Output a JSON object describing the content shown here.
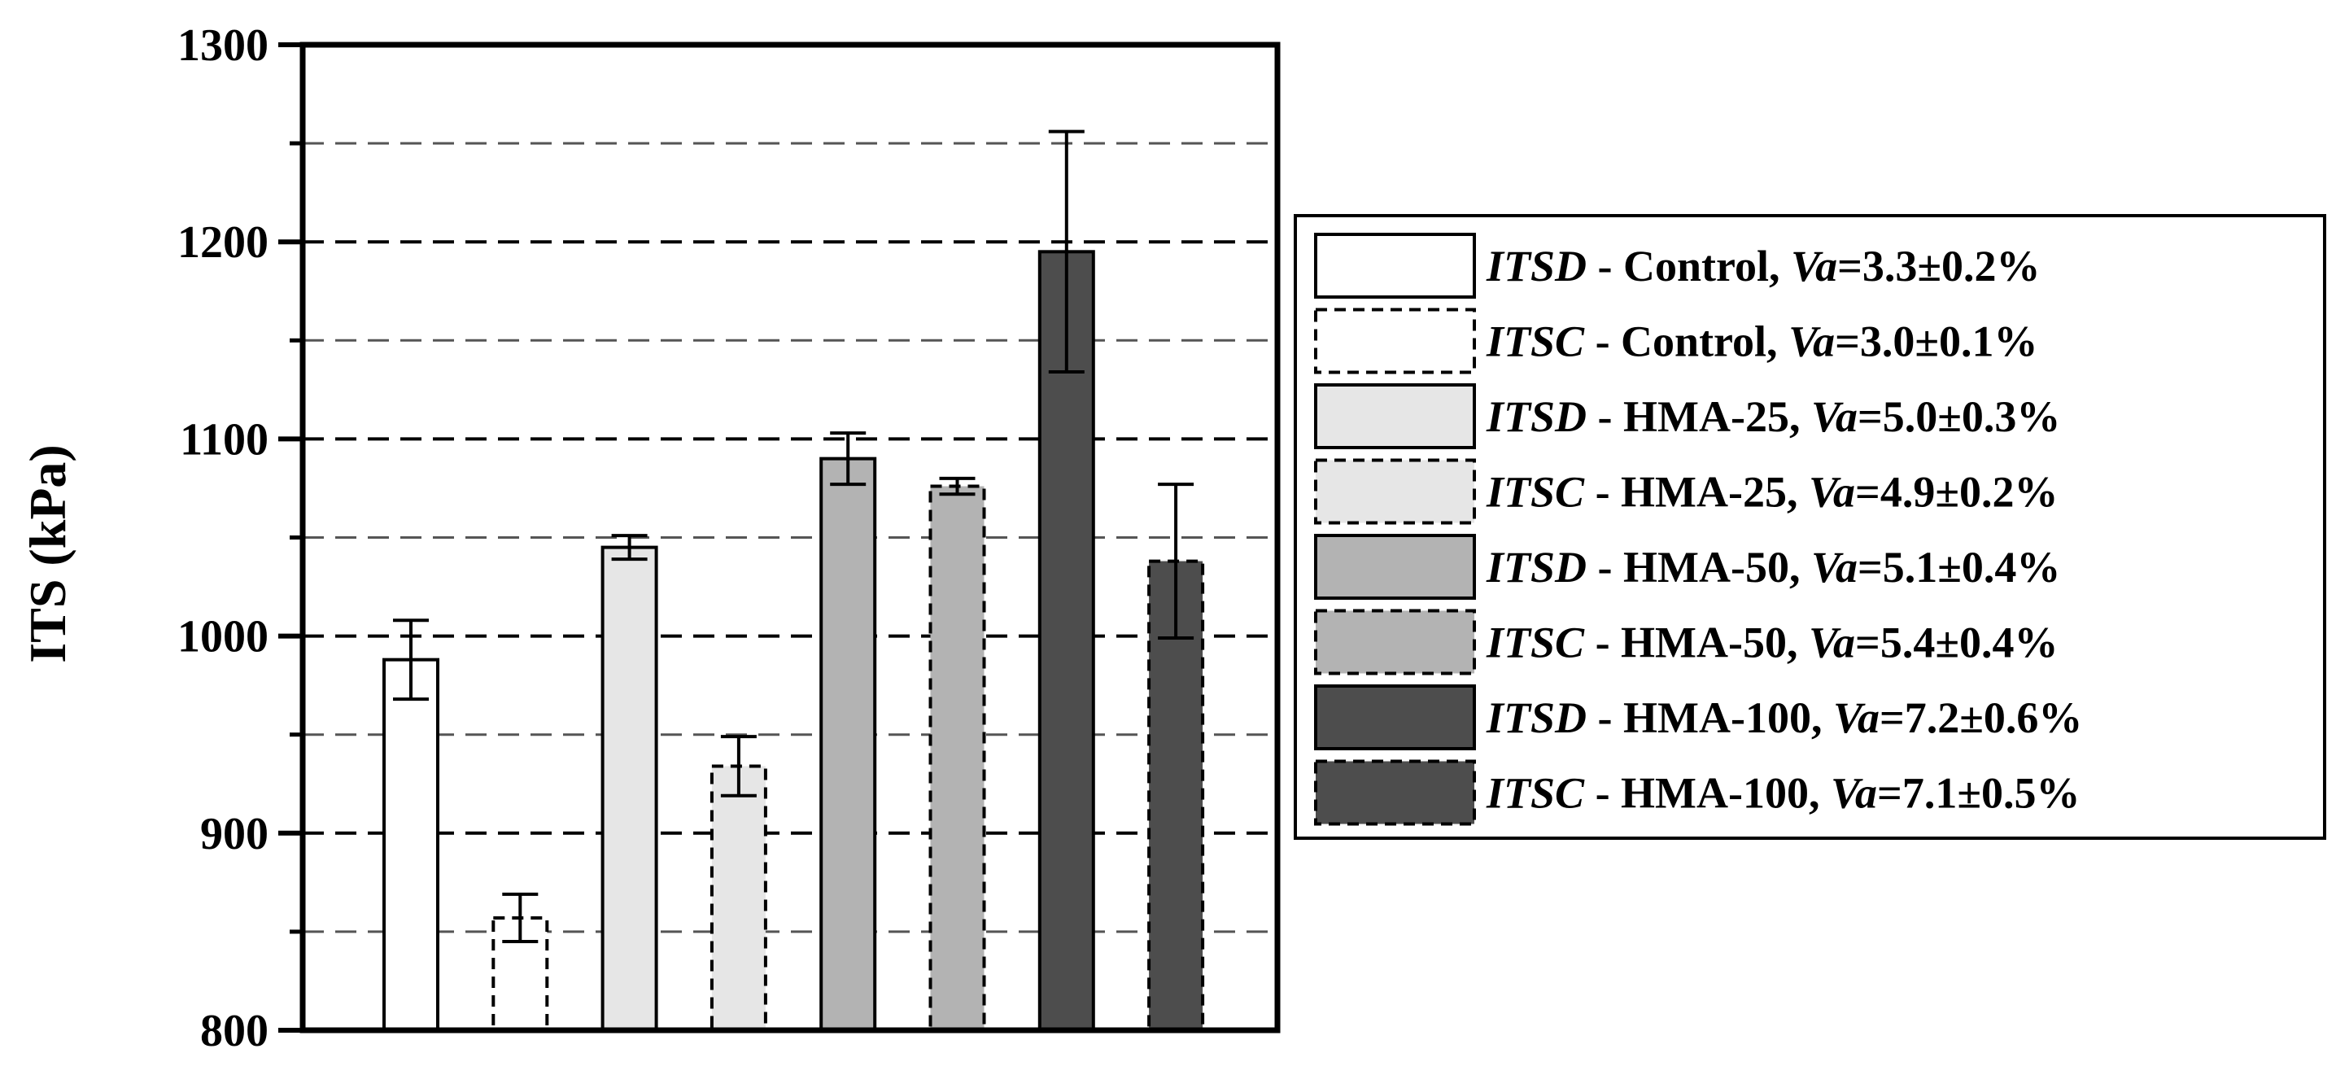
{
  "chart_data": {
    "type": "bar",
    "title": "",
    "xlabel": "",
    "ylabel": "ITS (kPa)",
    "ylim": [
      800,
      1300
    ],
    "yticks": [
      "800",
      "900",
      "1000",
      "1100",
      "1200",
      "1300"
    ],
    "grid": "horizontal dashed",
    "legend_position": "right",
    "colors": {
      "Control": "#ffffff",
      "HMA-25": "#e6e6e6",
      "HMA-50": "#b3b3b3",
      "HMA-100": "#4d4d4d"
    },
    "series": [
      {
        "legend": {
          "prefix": "ITSD",
          "mix": " - Control, ",
          "va": "Va",
          "value": "=3.3±0.2%"
        },
        "value": 988,
        "error": 20,
        "fill": "#ffffff",
        "dashed": false
      },
      {
        "legend": {
          "prefix": "ITSC",
          "mix": " - Control, ",
          "va": "Va",
          "value": "=3.0±0.1%"
        },
        "value": 857,
        "error": 12,
        "fill": "#ffffff",
        "dashed": true
      },
      {
        "legend": {
          "prefix": "ITSD",
          "mix": " - HMA-25, ",
          "va": "Va",
          "value": "=5.0±0.3%"
        },
        "value": 1045,
        "error": 6,
        "fill": "#e6e6e6",
        "dashed": false
      },
      {
        "legend": {
          "prefix": "ITSC",
          "mix": " - HMA-25, ",
          "va": "Va",
          "value": "=4.9±0.2%"
        },
        "value": 934,
        "error": 15,
        "fill": "#e6e6e6",
        "dashed": true
      },
      {
        "legend": {
          "prefix": "ITSD",
          "mix": " - HMA-50, ",
          "va": "Va",
          "value": "=5.1±0.4%"
        },
        "value": 1090,
        "error": 13,
        "fill": "#b3b3b3",
        "dashed": false
      },
      {
        "legend": {
          "prefix": "ITSC",
          "mix": " - HMA-50, ",
          "va": "Va",
          "value": "=5.4±0.4%"
        },
        "value": 1076,
        "error": 4,
        "fill": "#b3b3b3",
        "dashed": true
      },
      {
        "legend": {
          "prefix": "ITSD",
          "mix": " - HMA-100, ",
          "va": "Va",
          "value": "=7.2±0.6%"
        },
        "value": 1195,
        "error": 61,
        "fill": "#4d4d4d",
        "dashed": false
      },
      {
        "legend": {
          "prefix": "ITSC",
          "mix": " - HMA-100, ",
          "va": "Va",
          "value": "=7.1±0.5%"
        },
        "value": 1038,
        "error": 39,
        "fill": "#4d4d4d",
        "dashed": true
      }
    ]
  }
}
